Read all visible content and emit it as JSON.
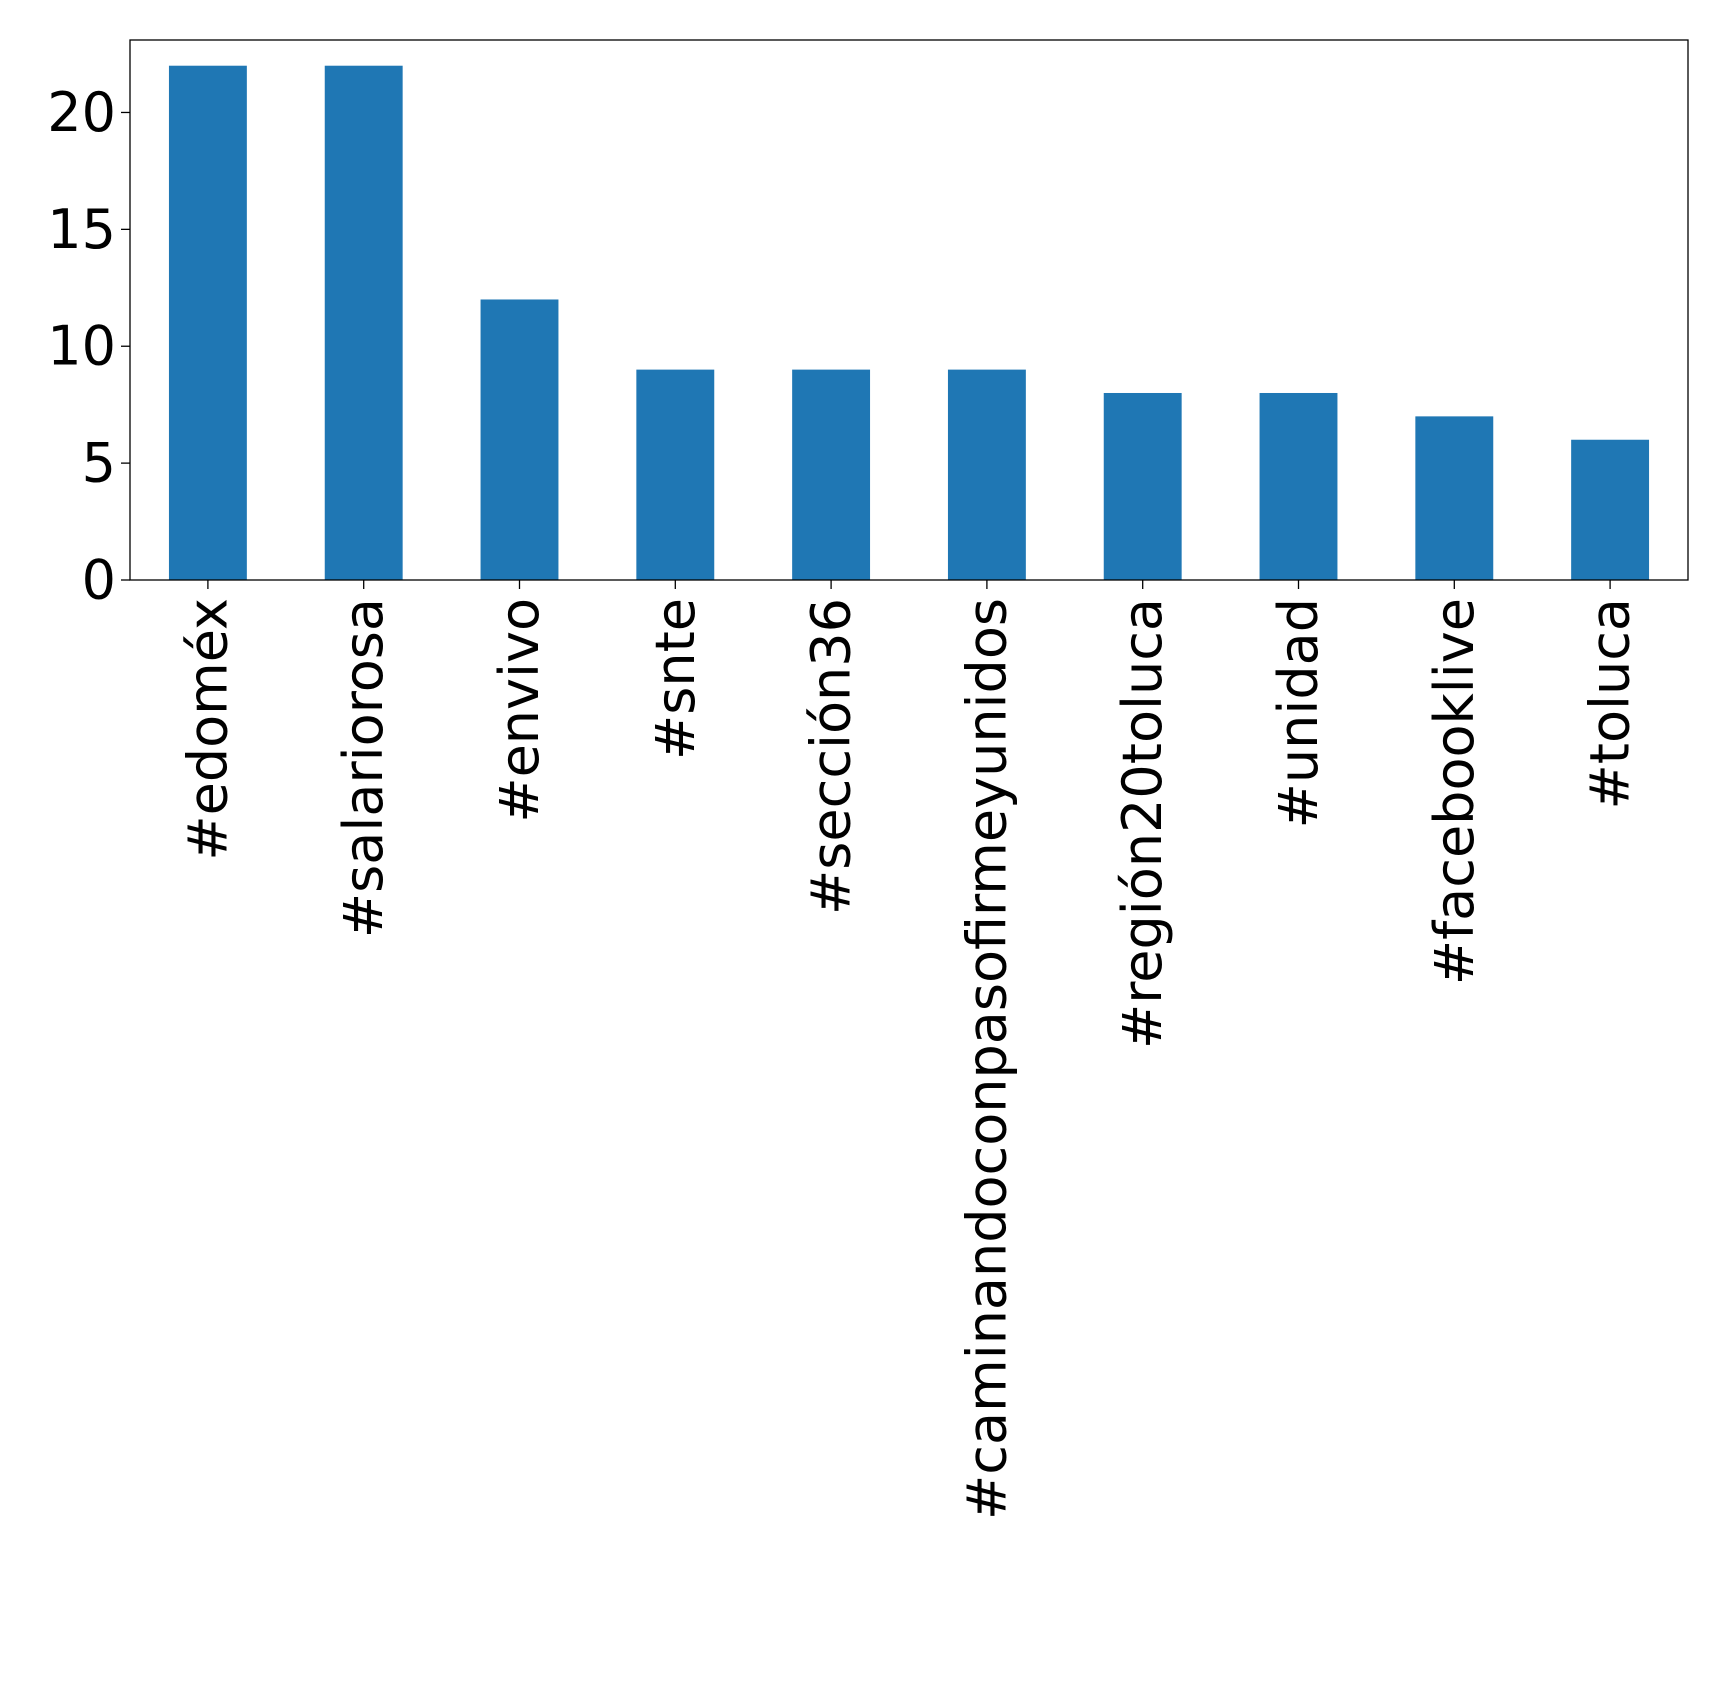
{
  "chart_data": {
    "type": "bar",
    "title": "",
    "xlabel": "",
    "ylabel": "",
    "categories": [
      "#edoméx",
      "#salariorosa",
      "#envivo",
      "#snte",
      "#sección36",
      "#caminandoconpasofirmeyunidos",
      "#región20toluca",
      "#unidad",
      "#facebooklive",
      "#toluca"
    ],
    "values": [
      22,
      22,
      12,
      9,
      9,
      9,
      8,
      8,
      7,
      6
    ],
    "ylim": [
      0,
      23.1
    ],
    "yticks": [
      0,
      5,
      10,
      15,
      20
    ],
    "bar_color": "#1f77b4",
    "grid": false,
    "legend": "none"
  }
}
